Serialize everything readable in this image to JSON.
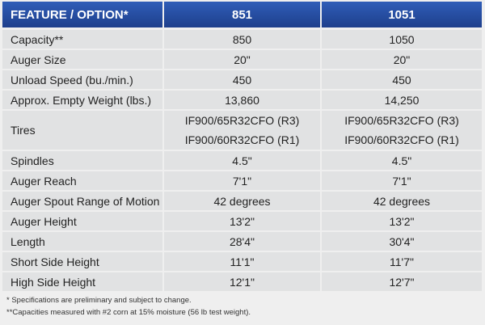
{
  "table": {
    "header": [
      "FEATURE / OPTION*",
      "851",
      "1051"
    ],
    "rows": [
      [
        "Capacity**",
        "850",
        "1050"
      ],
      [
        "Auger Size",
        "20\"",
        "20\""
      ],
      [
        "Unload Speed (bu./min.)",
        "450",
        "450"
      ],
      [
        "Approx. Empty Weight (lbs.)",
        "13,860",
        "14,250"
      ],
      [
        "Tires",
        [
          "IF900/65R32CFO (R3)",
          "IF900/60R32CFO (R1)"
        ],
        [
          "IF900/65R32CFO (R3)",
          "IF900/60R32CFO (R1)"
        ]
      ],
      [
        "Spindles",
        "4.5\"",
        "4.5\""
      ],
      [
        "Auger Reach",
        "7'1\"",
        "7'1\""
      ],
      [
        "Auger Spout Range of Motion",
        "42 degrees",
        "42 degrees"
      ],
      [
        "Auger Height",
        "13'2\"",
        "13'2\""
      ],
      [
        "Length",
        "28'4\"",
        "30'4\""
      ],
      [
        "Short Side Height",
        "11'1\"",
        "11'7\""
      ],
      [
        "High Side Height",
        "12'1\"",
        "12'7\""
      ]
    ]
  },
  "footnotes": [
    "* Specifications are preliminary and subject to change.",
    "**Capacities measured with #2 corn at 15% moisture (56 lb test weight)."
  ]
}
